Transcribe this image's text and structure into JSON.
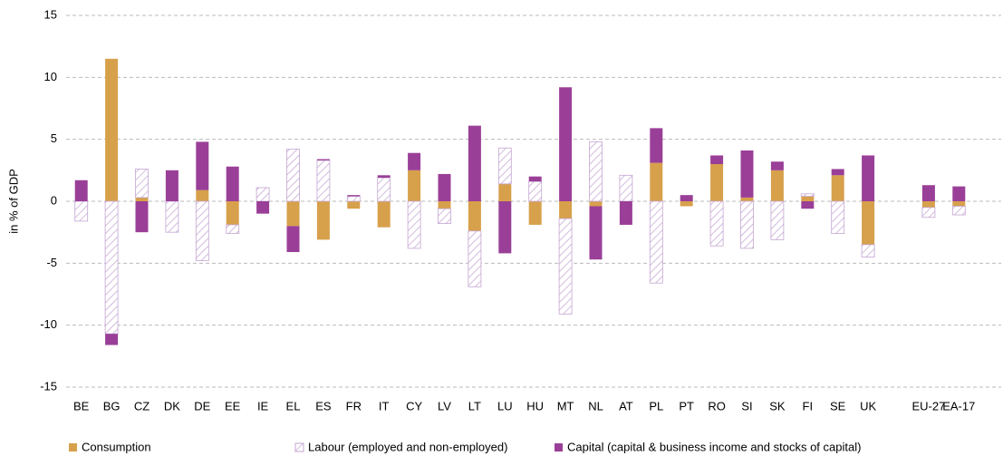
{
  "chart_data": {
    "type": "stacked_bar",
    "y_label": "in % of GDP",
    "categories": [
      "BE",
      "BG",
      "CZ",
      "DK",
      "DE",
      "EE",
      "IE",
      "EL",
      "ES",
      "FR",
      "IT",
      "CY",
      "LV",
      "LT",
      "LU",
      "HU",
      "MT",
      "NL",
      "AT",
      "PL",
      "PT",
      "RO",
      "SI",
      "SK",
      "FI",
      "SE",
      "UK",
      null,
      "EU-27",
      "EA-17"
    ],
    "series": [
      {
        "name": "Consumption",
        "color": "#d7a04b",
        "pattern": "solid",
        "values": [
          0,
          11.5,
          0.3,
          0,
          0.9,
          -1.9,
          0,
          -2.0,
          -3.1,
          -0.6,
          -2.1,
          2.5,
          -0.6,
          -2.4,
          1.4,
          -1.9,
          -1.4,
          -0.4,
          0,
          3.1,
          -0.4,
          3.0,
          0.3,
          2.5,
          0.4,
          2.1,
          -3.5,
          null,
          -0.5,
          -0.4
        ]
      },
      {
        "name": "Labour (employed and non-employed)",
        "color": "#c4a6d2",
        "pattern": "hatch",
        "values": [
          -1.6,
          -10.7,
          2.3,
          -2.5,
          -4.8,
          -0.7,
          1.1,
          4.2,
          3.3,
          0.4,
          1.9,
          -3.8,
          -1.2,
          -4.5,
          2.9,
          1.6,
          -7.7,
          4.8,
          2.1,
          -6.6,
          0,
          -3.6,
          -3.8,
          -3.1,
          0.2,
          -2.6,
          -1.0,
          null,
          -0.8,
          -0.7
        ]
      },
      {
        "name": "Capital (capital & business income and stocks of capital)",
        "color": "#9a3f98",
        "pattern": "solid",
        "values": [
          1.7,
          -0.9,
          -2.5,
          2.5,
          3.9,
          2.8,
          -1.0,
          -2.1,
          0.1,
          0.1,
          0.2,
          1.4,
          2.2,
          6.1,
          -4.2,
          0.4,
          9.2,
          -4.3,
          -1.9,
          2.8,
          0.5,
          0.7,
          3.8,
          0.7,
          -0.6,
          0.5,
          3.7,
          null,
          1.3,
          1.2
        ]
      }
    ],
    "ylim": [
      -15,
      15
    ],
    "yticks": [
      -15,
      -10,
      -5,
      0,
      5,
      10,
      15
    ],
    "grid": true,
    "legend": "bottom"
  }
}
